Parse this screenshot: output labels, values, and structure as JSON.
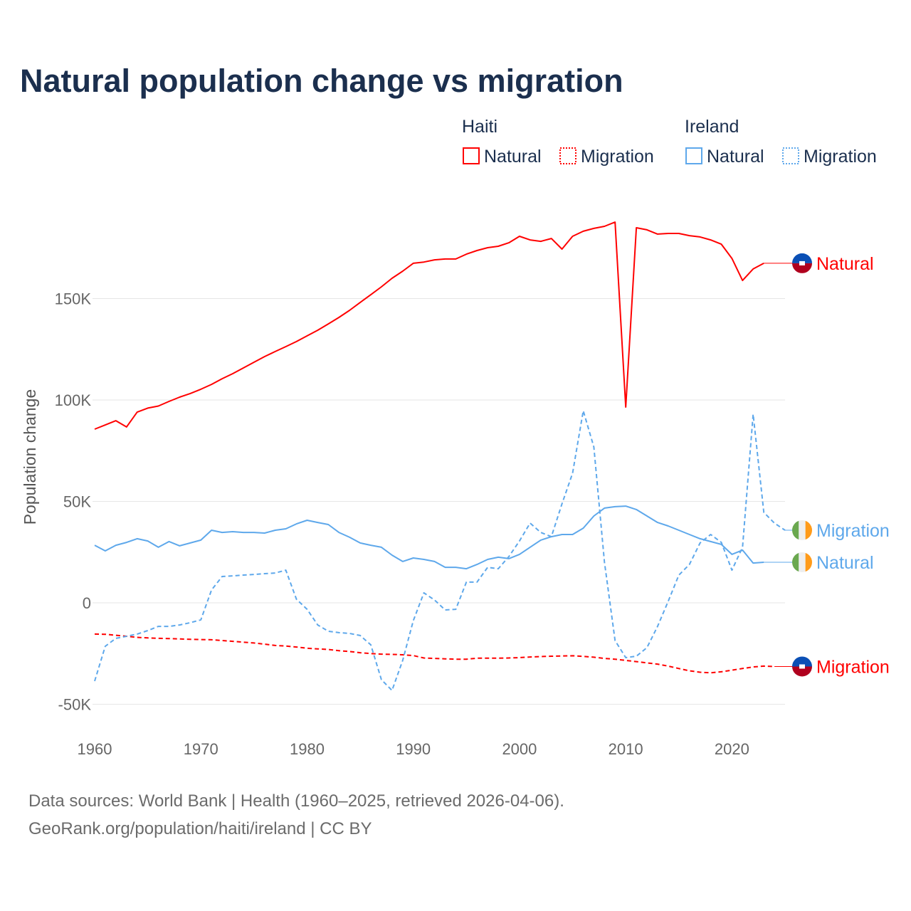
{
  "title": "Natural population change vs migration",
  "footer": {
    "line1": "Data sources: World Bank | Health (1960–2025, retrieved 2026-04-06).",
    "line2": "GeoRank.org/population/haiti/ireland | CC BY"
  },
  "legend": {
    "groups": [
      {
        "country": "Haiti",
        "items": [
          "Natural",
          "Migration"
        ]
      },
      {
        "country": "Ireland",
        "items": [
          "Natural",
          "Migration"
        ]
      }
    ]
  },
  "colors": {
    "haiti": "#ff0000",
    "ireland": "#5ea8eb",
    "title": "#1b2f4e",
    "grid": "#e6e6e6"
  },
  "chart_data": {
    "type": "line",
    "title": "Natural population change vs migration",
    "xlabel": "",
    "ylabel": "Population change",
    "xlim": [
      1960,
      2025
    ],
    "ylim": [
      -55000,
      200000
    ],
    "x_ticks": [
      "1960",
      "1970",
      "1980",
      "1990",
      "2000",
      "2010",
      "2020"
    ],
    "x_tick_values": [
      1960,
      1970,
      1980,
      1990,
      2000,
      2010,
      2020
    ],
    "y_ticks": [
      "-50K",
      "0",
      "50K",
      "100K",
      "150K"
    ],
    "y_tick_values": [
      -50000,
      0,
      50000,
      100000,
      150000
    ],
    "grid": true,
    "legend_position": "top-right",
    "series": [
      {
        "name": "Haiti Natural",
        "country": "Haiti",
        "label": "Natural",
        "style": "solid",
        "color": "#ff0000",
        "start": 1960,
        "values": [
          85.6,
          87.7,
          89.8,
          86.7,
          94,
          96,
          97,
          99.3,
          101.4,
          103.2,
          105.3,
          107.7,
          110.5,
          113,
          115.8,
          118.6,
          121.4,
          123.9,
          126.3,
          128.8,
          131.6,
          134.4,
          137.5,
          140.7,
          144.2,
          148.1,
          151.9,
          155.8,
          160,
          163.5,
          167.4,
          168,
          169.1,
          169.5,
          169.5,
          171.9,
          173.7,
          175.1,
          175.8,
          177.5,
          180.7,
          178.9,
          178.2,
          179.6,
          174.4,
          180.7,
          183.2,
          184.6,
          185.6,
          187.7,
          96.5,
          184.9,
          183.9,
          181.8,
          182.1,
          182.1,
          181,
          180.4,
          178.9,
          176.8,
          169.8,
          158.9,
          164.6,
          167.4
        ]
      },
      {
        "name": "Haiti Migration",
        "country": "Haiti",
        "label": "Migration",
        "style": "dashed",
        "color": "#ff0000",
        "start": 1960,
        "values": [
          -15.4,
          -15.5,
          -16,
          -16.5,
          -17,
          -17.3,
          -17.5,
          -17.6,
          -17.8,
          -18,
          -18.1,
          -18.2,
          -18.6,
          -19,
          -19.4,
          -19.8,
          -20.4,
          -21,
          -21.3,
          -21.8,
          -22.4,
          -22.7,
          -23,
          -23.6,
          -24,
          -24.6,
          -25,
          -25.3,
          -25.4,
          -25.6,
          -26,
          -27.2,
          -27.4,
          -27.6,
          -27.8,
          -27.8,
          -27.3,
          -27.3,
          -27.3,
          -27.2,
          -27,
          -26.7,
          -26.5,
          -26.3,
          -26.2,
          -26.1,
          -26.4,
          -26.8,
          -27.4,
          -27.8,
          -28.4,
          -29,
          -29.6,
          -30.2,
          -31.2,
          -32.4,
          -33.5,
          -34.2,
          -34.5,
          -34,
          -33.2,
          -32.4,
          -31.6,
          -31.2,
          -31.4
        ]
      },
      {
        "name": "Ireland Natural",
        "country": "Ireland",
        "label": "Natural",
        "style": "solid",
        "color": "#5ea8eb",
        "start": 1960,
        "values": [
          28.4,
          25.6,
          28.4,
          29.8,
          31.6,
          30.5,
          27.4,
          30.2,
          28.1,
          29.5,
          30.9,
          35.8,
          34.7,
          35.1,
          34.7,
          34.7,
          34.4,
          35.8,
          36.5,
          38.9,
          40.7,
          39.6,
          38.6,
          34.7,
          32.3,
          29.5,
          28.4,
          27.4,
          23.5,
          20.4,
          22.1,
          21.4,
          20.4,
          17.5,
          17.5,
          16.8,
          18.9,
          21.4,
          22.5,
          21.8,
          23.9,
          27.4,
          30.9,
          32.6,
          33.7,
          33.7,
          36.8,
          42.8,
          46.7,
          47.4,
          47.7,
          46,
          42.8,
          39.6,
          37.9,
          35.8,
          33.7,
          31.6,
          30.2,
          28.8,
          23.9,
          26,
          19.6,
          20
        ]
      },
      {
        "name": "Ireland Migration",
        "country": "Ireland",
        "label": "Migration",
        "style": "dashed",
        "color": "#5ea8eb",
        "start": 1960,
        "values": [
          -38.6,
          -21.4,
          -17.5,
          -16.5,
          -15.4,
          -13.7,
          -11.6,
          -11.6,
          -10.9,
          -9.8,
          -8.4,
          6.3,
          13,
          13.3,
          13.7,
          14,
          14.4,
          14.7,
          16.1,
          1.8,
          -3.2,
          -10.9,
          -14,
          -14.7,
          -15.1,
          -16.1,
          -20.7,
          -37.9,
          -43.2,
          -28.4,
          -8.8,
          4.9,
          1.4,
          -3.5,
          -3.2,
          10.2,
          10.2,
          17.5,
          16.8,
          22.8,
          30.5,
          39.3,
          34.7,
          32.6,
          48.8,
          63.9,
          94.7,
          76.8,
          20,
          -18.6,
          -27,
          -26.3,
          -22.1,
          -11.6,
          0.7,
          13.7,
          18.9,
          29.5,
          33.7,
          29.8,
          16.1,
          27.4,
          93,
          44.6,
          39.3,
          35.8
        ]
      }
    ],
    "value_units": "thousands"
  }
}
